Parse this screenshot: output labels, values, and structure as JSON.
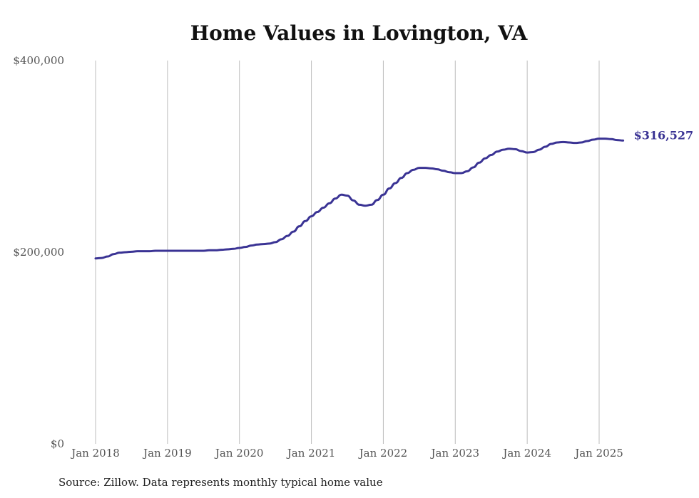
{
  "chart_data": {
    "type": "line",
    "title": "Home Values in Lovington, VA",
    "xlabel": "",
    "ylabel": "",
    "ylim": [
      0,
      400000
    ],
    "y_ticks": [
      "$0",
      "$200,000",
      "$400,000"
    ],
    "x_ticks": [
      "Jan 2018",
      "Jan 2019",
      "Jan 2020",
      "Jan 2021",
      "Jan 2022",
      "Jan 2023",
      "Jan 2024",
      "Jan 2025"
    ],
    "grid": "vertical",
    "series": [
      {
        "color": "#3a3394",
        "end_label": "$316,527",
        "points": [
          [
            "2018-01",
            193500
          ],
          [
            "2018-02",
            194000
          ],
          [
            "2018-03",
            195500
          ],
          [
            "2018-04",
            198000
          ],
          [
            "2018-05",
            199500
          ],
          [
            "2018-06",
            200000
          ],
          [
            "2018-07",
            200500
          ],
          [
            "2018-08",
            201000
          ],
          [
            "2018-09",
            201000
          ],
          [
            "2018-10",
            201000
          ],
          [
            "2018-11",
            201500
          ],
          [
            "2018-12",
            201500
          ],
          [
            "2019-01",
            201500
          ],
          [
            "2019-02",
            201500
          ],
          [
            "2019-03",
            201500
          ],
          [
            "2019-04",
            201500
          ],
          [
            "2019-05",
            201500
          ],
          [
            "2019-06",
            201500
          ],
          [
            "2019-07",
            201500
          ],
          [
            "2019-08",
            202000
          ],
          [
            "2019-09",
            202000
          ],
          [
            "2019-10",
            202500
          ],
          [
            "2019-11",
            203000
          ],
          [
            "2019-12",
            203500
          ],
          [
            "2020-01",
            204500
          ],
          [
            "2020-02",
            205500
          ],
          [
            "2020-03",
            207000
          ],
          [
            "2020-04",
            208000
          ],
          [
            "2020-05",
            208500
          ],
          [
            "2020-06",
            209000
          ],
          [
            "2020-07",
            210500
          ],
          [
            "2020-08",
            213500
          ],
          [
            "2020-09",
            217000
          ],
          [
            "2020-10",
            221500
          ],
          [
            "2020-11",
            227000
          ],
          [
            "2020-12",
            232500
          ],
          [
            "2021-01",
            237500
          ],
          [
            "2021-02",
            242000
          ],
          [
            "2021-03",
            246500
          ],
          [
            "2021-04",
            251000
          ],
          [
            "2021-05",
            256000
          ],
          [
            "2021-06",
            260000
          ],
          [
            "2021-07",
            259000
          ],
          [
            "2021-08",
            254000
          ],
          [
            "2021-09",
            249500
          ],
          [
            "2021-10",
            248500
          ],
          [
            "2021-11",
            249500
          ],
          [
            "2021-12",
            254500
          ],
          [
            "2022-01",
            260000
          ],
          [
            "2022-02",
            266500
          ],
          [
            "2022-03",
            272000
          ],
          [
            "2022-04",
            277500
          ],
          [
            "2022-05",
            282500
          ],
          [
            "2022-06",
            286000
          ],
          [
            "2022-07",
            288000
          ],
          [
            "2022-08",
            288000
          ],
          [
            "2022-09",
            287500
          ],
          [
            "2022-10",
            286500
          ],
          [
            "2022-11",
            285000
          ],
          [
            "2022-12",
            283500
          ],
          [
            "2023-01",
            282500
          ],
          [
            "2023-02",
            282500
          ],
          [
            "2023-03",
            284500
          ],
          [
            "2023-04",
            288500
          ],
          [
            "2023-05",
            293500
          ],
          [
            "2023-06",
            298000
          ],
          [
            "2023-07",
            301500
          ],
          [
            "2023-08",
            305000
          ],
          [
            "2023-09",
            307000
          ],
          [
            "2023-10",
            308000
          ],
          [
            "2023-11",
            307500
          ],
          [
            "2023-12",
            305500
          ],
          [
            "2024-01",
            304000
          ],
          [
            "2024-02",
            304500
          ],
          [
            "2024-03",
            307000
          ],
          [
            "2024-04",
            310000
          ],
          [
            "2024-05",
            313000
          ],
          [
            "2024-06",
            314500
          ],
          [
            "2024-07",
            315000
          ],
          [
            "2024-08",
            314500
          ],
          [
            "2024-09",
            314000
          ],
          [
            "2024-10",
            314500
          ],
          [
            "2024-11",
            316000
          ],
          [
            "2024-12",
            317500
          ],
          [
            "2025-01",
            318500
          ],
          [
            "2025-02",
            318500
          ],
          [
            "2025-03",
            318000
          ],
          [
            "2025-04",
            317000
          ],
          [
            "2025-05",
            316527
          ]
        ]
      }
    ]
  },
  "source": "Source: Zillow. Data represents monthly typical home value"
}
